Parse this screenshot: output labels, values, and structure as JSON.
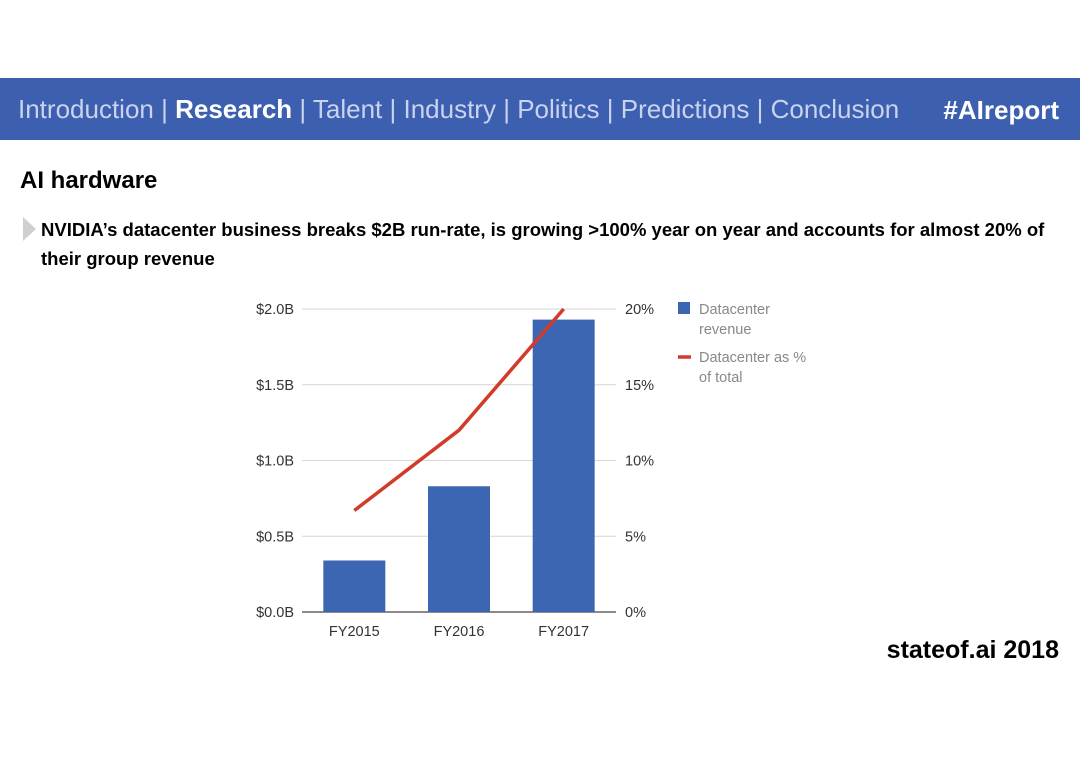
{
  "nav": {
    "items": [
      "Introduction",
      "Research",
      "Talent",
      "Industry",
      "Politics",
      "Predictions",
      "Conclusion"
    ],
    "separator": "|",
    "active_index": 1,
    "hashtag": "#AIreport"
  },
  "title": "AI hardware",
  "subtitle": "NVIDIA’s datacenter business breaks $2B run-rate, is growing >100% year on year and accounts for almost 20% of their group revenue",
  "footer": "stateof.ai 2018",
  "colors": {
    "nav_bg": "#3d5fb0",
    "bar": "#3d66b2",
    "line": "#d23a2a"
  },
  "chart_data": {
    "type": "bar",
    "categories": [
      "FY2015",
      "FY2016",
      "FY2017"
    ],
    "series": [
      {
        "name": "Datacenter revenue",
        "type": "bar",
        "axis": "left",
        "values": [
          0.34,
          0.83,
          1.93
        ],
        "legend_lines": [
          "Datacenter",
          "revenue"
        ]
      },
      {
        "name": "Datacenter as % of total",
        "type": "line",
        "axis": "right",
        "values": [
          6.7,
          12.0,
          20.0
        ],
        "legend_lines": [
          "Datacenter as %",
          "of total"
        ]
      }
    ],
    "left_axis": {
      "min": 0,
      "max": 2.0,
      "ticks": [
        "$0.0B",
        "$0.5B",
        "$1.0B",
        "$1.5B",
        "$2.0B"
      ]
    },
    "right_axis": {
      "min": 0,
      "max": 20,
      "ticks": [
        "0%",
        "5%",
        "10%",
        "15%",
        "20%"
      ]
    },
    "grid": true,
    "legend_position": "right"
  }
}
